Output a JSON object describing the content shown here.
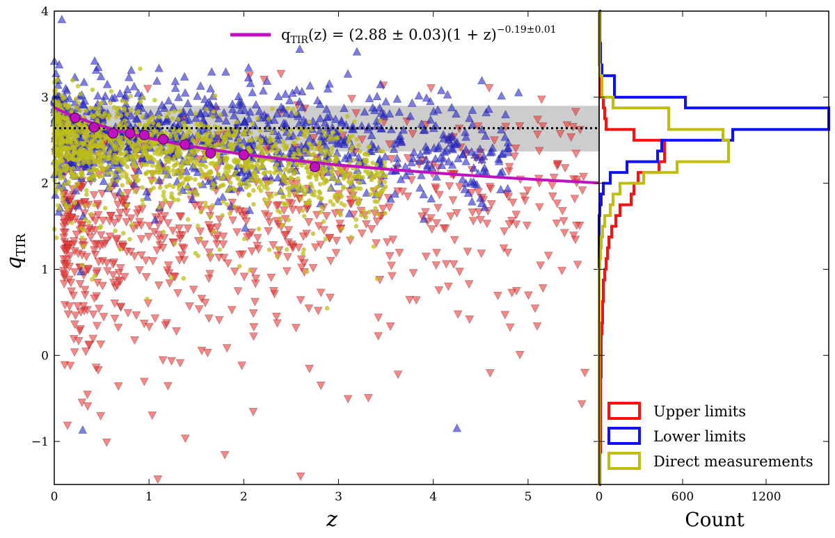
{
  "chart_data": [
    {
      "type": "scatter",
      "xlabel": "z",
      "ylabel": "q",
      "ylabel_sub": "TIR",
      "xlim": [
        0,
        5.75
      ],
      "ylim": [
        -1.5,
        4
      ],
      "xticks": [
        "0",
        "1",
        "2",
        "3",
        "4",
        "5"
      ],
      "yticks": [
        "−1",
        "0",
        "1",
        "2",
        "3",
        "4"
      ],
      "grid": false,
      "fit": {
        "label_lhs": "q",
        "label_lhs_sub": "TIR",
        "label_eq": "(z) = (2.88 ± 0.03)(1 + z)",
        "label_exp": "−0.19±0.01",
        "color": "#c010c0",
        "a": 2.88,
        "b": -0.19
      },
      "band": {
        "median": 2.64,
        "lower": 2.37,
        "upper": 2.9,
        "color": "#b8b8b8"
      },
      "binned_medians": {
        "x": [
          0.22,
          0.42,
          0.62,
          0.8,
          0.95,
          1.15,
          1.38,
          1.65,
          2.0,
          2.75
        ],
        "y": [
          2.76,
          2.65,
          2.58,
          2.58,
          2.56,
          2.51,
          2.45,
          2.35,
          2.33,
          2.19
        ],
        "color": "#c010c0"
      },
      "series": [
        {
          "name": "Direct measurements",
          "marker": "circle",
          "color": "#bdbd1a",
          "count": 1500,
          "z_range": [
            0.0,
            3.5
          ],
          "q_center": 2.5,
          "q_spread": 0.25
        },
        {
          "name": "Lower limits",
          "marker": "triangle-up",
          "color": "#2828c8",
          "count": 900,
          "z_range": [
            0.0,
            4.8
          ],
          "q_center": 2.6,
          "q_spread": 0.35,
          "outliers": [
            [
              0.3,
              -0.87
            ],
            [
              4.25,
              -0.85
            ],
            [
              0.28,
              0.97
            ],
            [
              4.9,
              3.05
            ],
            [
              0.08,
              3.9
            ]
          ]
        },
        {
          "name": "Upper limits",
          "marker": "triangle-down",
          "color": "#e83a3a",
          "count": 700,
          "z_range": [
            0.1,
            5.6
          ],
          "q_center": 1.4,
          "q_spread": 0.55,
          "outliers": [
            [
              0.35,
              -0.45
            ],
            [
              0.95,
              -0.3
            ],
            [
              1.2,
              -0.35
            ],
            [
              1.8,
              -1.15
            ],
            [
              2.6,
              -1.4
            ],
            [
              2.1,
              -0.65
            ],
            [
              3.1,
              -0.5
            ],
            [
              4.6,
              -0.2
            ],
            [
              5.5,
              1.35
            ]
          ]
        }
      ]
    },
    {
      "type": "histogram",
      "orientation": "horizontal",
      "xlabel": "Count",
      "xlim": [
        0,
        1650
      ],
      "xticks": [
        0,
        600,
        1200
      ],
      "xtick_labels": [
        "0",
        "600",
        "1200"
      ],
      "bin_edges": [
        -1.5,
        -1.375,
        -1.25,
        -1.125,
        -1.0,
        -0.875,
        -0.75,
        -0.625,
        -0.5,
        -0.375,
        -0.25,
        -0.125,
        0.0,
        0.125,
        0.25,
        0.375,
        0.5,
        0.625,
        0.75,
        0.875,
        1.0,
        1.125,
        1.25,
        1.375,
        1.5,
        1.625,
        1.75,
        1.875,
        2.0,
        2.125,
        2.25,
        2.375,
        2.5,
        2.625,
        2.75,
        2.875,
        3.0,
        3.125,
        3.25,
        3.375,
        3.5,
        3.625,
        3.75,
        3.875,
        4.0
      ],
      "series": [
        {
          "name": "Upper limits",
          "color": "#ff1010",
          "counts": [
            5,
            5,
            5,
            10,
            10,
            10,
            10,
            10,
            10,
            10,
            15,
            15,
            15,
            15,
            20,
            25,
            25,
            30,
            30,
            40,
            50,
            60,
            70,
            90,
            120,
            150,
            230,
            250,
            280,
            430,
            470,
            470,
            250,
            50,
            40,
            30,
            10,
            10,
            5,
            5,
            5,
            5,
            5,
            5
          ]
        },
        {
          "name": "Lower limits",
          "color": "#1010ff",
          "counts": [
            0,
            0,
            0,
            0,
            0,
            0,
            0,
            0,
            0,
            0,
            0,
            0,
            0,
            0,
            0,
            0,
            0,
            0,
            0,
            0,
            0,
            0,
            0,
            0,
            0,
            5,
            15,
            30,
            80,
            200,
            420,
            450,
            960,
            1650,
            1650,
            620,
            110,
            110,
            20,
            10,
            10,
            5,
            5,
            5
          ]
        },
        {
          "name": "Direct measurements",
          "color": "#bebe10",
          "counts": [
            0,
            0,
            0,
            0,
            0,
            0,
            0,
            0,
            0,
            0,
            0,
            0,
            0,
            0,
            0,
            0,
            0,
            0,
            0,
            0,
            5,
            10,
            15,
            25,
            40,
            80,
            100,
            150,
            320,
            560,
            930,
            930,
            890,
            500,
            500,
            100,
            20,
            20,
            5,
            0,
            0,
            0,
            0,
            0
          ]
        }
      ],
      "legend": {
        "placement": "lower-right",
        "entries": [
          "Upper limits",
          "Lower limits",
          "Direct measurements"
        ]
      }
    }
  ]
}
